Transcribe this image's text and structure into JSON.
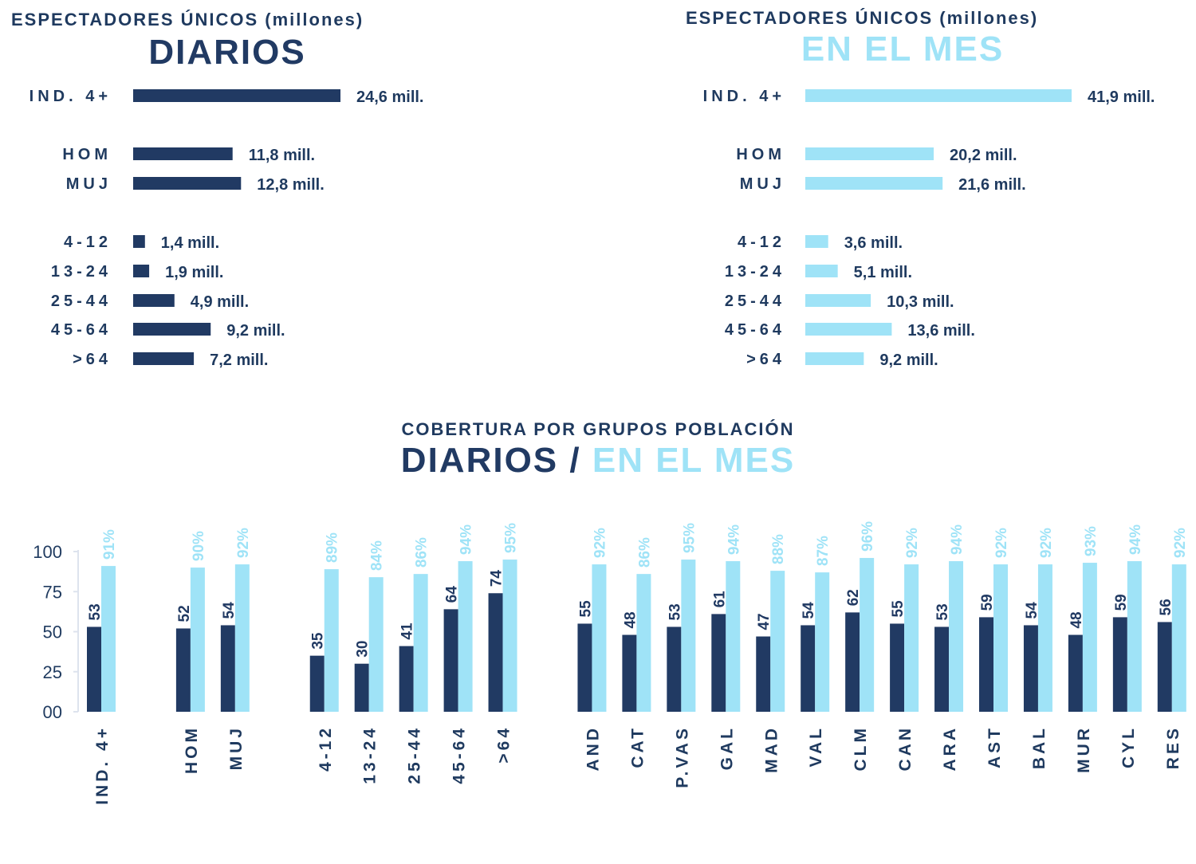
{
  "colors": {
    "dark": "#213a63",
    "light": "#9fe3f7",
    "axis": "#dde3ee"
  },
  "chart_data": [
    {
      "type": "bar",
      "orientation": "horizontal",
      "title": "ESPECTADORES ÚNICOS (millones)",
      "subtitle": "DIARIOS",
      "unit_suffix": " mill.",
      "categories": [
        "IND. 4+",
        "HOM",
        "MUJ",
        "4-12",
        "13-24",
        "25-44",
        "45-64",
        ">64"
      ],
      "values": [
        24.6,
        11.8,
        12.8,
        1.4,
        1.9,
        4.9,
        9.2,
        7.2
      ],
      "labels": [
        "24,6 mill.",
        "11,8 mill.",
        "12,8 mill.",
        "1,4 mill.",
        "1,9 mill.",
        "4,9 mill.",
        "9,2 mill.",
        "7,2 mill."
      ],
      "color": "dark"
    },
    {
      "type": "bar",
      "orientation": "horizontal",
      "title": "ESPECTADORES ÚNICOS (millones)",
      "subtitle": "EN EL MES",
      "unit_suffix": " mill.",
      "categories": [
        "IND. 4+",
        "HOM",
        "MUJ",
        "4-12",
        "13-24",
        "25-44",
        "45-64",
        ">64"
      ],
      "values": [
        41.9,
        20.2,
        21.6,
        3.6,
        5.1,
        10.3,
        13.6,
        9.2
      ],
      "labels": [
        "41,9 mill.",
        "20,2 mill.",
        "21,6 mill.",
        "3,6 mill.",
        "5,1 mill.",
        "10,3 mill.",
        "13,6 mill.",
        "9,2 mill."
      ],
      "color": "light"
    },
    {
      "type": "bar",
      "orientation": "vertical",
      "title": "COBERTURA POR GRUPOS POBLACIÓN",
      "subtitle_parts": [
        "DIARIOS",
        " / ",
        "EN EL MES"
      ],
      "ylim": [
        0,
        100
      ],
      "yticks": [
        "00",
        "25",
        "50",
        "75",
        "100"
      ],
      "ytick_values": [
        0,
        25,
        50,
        75,
        100
      ],
      "groups": [
        [
          "IND. 4+"
        ],
        [
          "HOM",
          "MUJ"
        ],
        [
          "4-12",
          "13-24",
          "25-44",
          "45-64",
          ">64"
        ],
        [
          "AND",
          "CAT",
          "P.VAS",
          "GAL",
          "MAD",
          "VAL",
          "CLM",
          "CAN",
          "ARA",
          "AST",
          "BAL",
          "MUR",
          "CYL",
          "RES"
        ]
      ],
      "series": [
        {
          "name": "DIARIOS",
          "color": "dark",
          "values": [
            53,
            52,
            54,
            35,
            30,
            41,
            64,
            74,
            55,
            48,
            53,
            61,
            47,
            54,
            62,
            55,
            53,
            59,
            54,
            48,
            59,
            56
          ],
          "labels": [
            "53",
            "52",
            "54",
            "35",
            "30",
            "41",
            "64",
            "74",
            "55",
            "48",
            "53",
            "61",
            "47",
            "54",
            "62",
            "55",
            "53",
            "59",
            "54",
            "48",
            "59",
            "56"
          ]
        },
        {
          "name": "EN EL MES",
          "color": "light",
          "values": [
            91,
            90,
            92,
            89,
            84,
            86,
            94,
            95,
            92,
            86,
            95,
            94,
            88,
            87,
            96,
            92,
            94,
            92,
            92,
            93,
            94,
            92
          ],
          "labels": [
            "91%",
            "90%",
            "92%",
            "89%",
            "84%",
            "86%",
            "94%",
            "95%",
            "92%",
            "86%",
            "95%",
            "94%",
            "88%",
            "87%",
            "96%",
            "92%",
            "94%",
            "92%",
            "92%",
            "93%",
            "94%",
            "92%"
          ]
        }
      ]
    }
  ]
}
